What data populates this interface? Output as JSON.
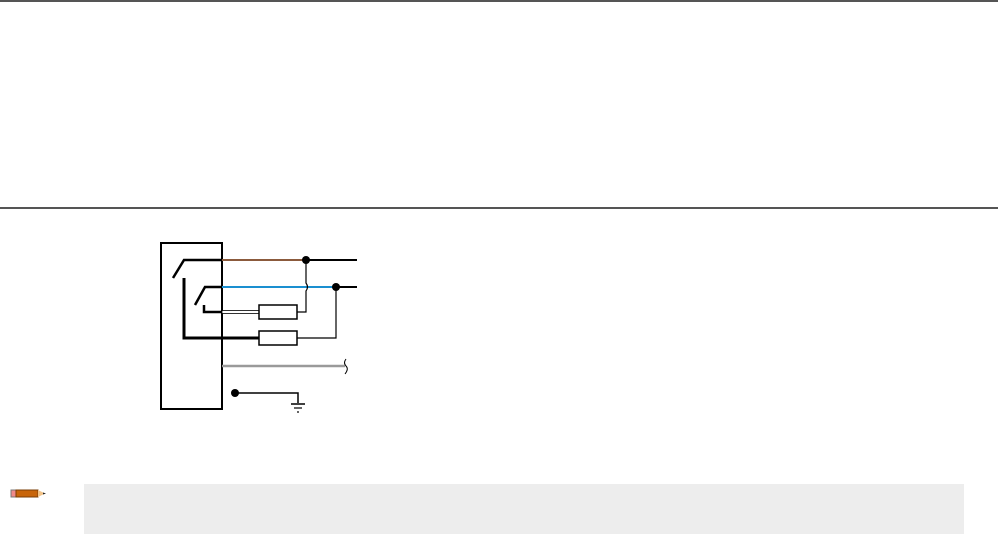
{
  "colors": {
    "rule": "#555555",
    "brown_wire": "#8b5a3c",
    "blue_wire": "#1a8fd0",
    "gray_wire": "#9a9a9a",
    "note_background": "#ededed"
  },
  "icons": {
    "note": "pencil-icon",
    "ground": "ground-icon"
  }
}
